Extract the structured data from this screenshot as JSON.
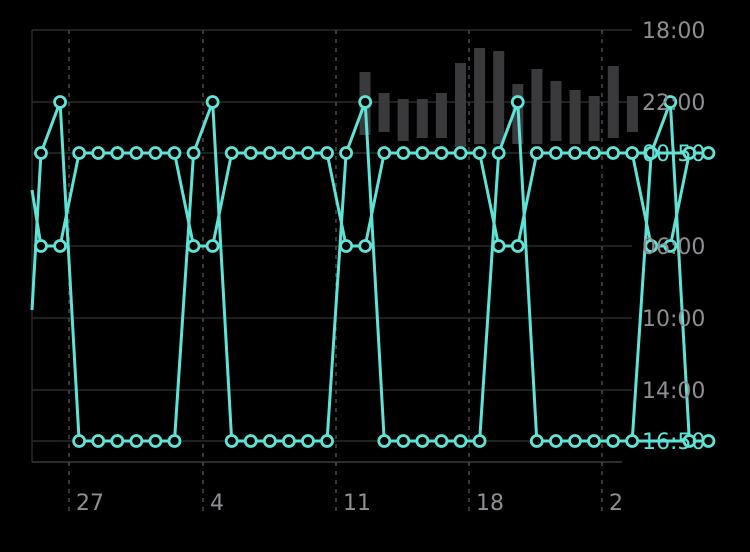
{
  "colors": {
    "background": "#000000",
    "grid": "#2a2a2a",
    "axis_label": "#8e8e93",
    "highlight_label": "#5fe3d6",
    "series": "#5fe3d6",
    "bars": "#3a3a3c"
  },
  "chart_data": {
    "type": "line",
    "title": "",
    "xlabel": "",
    "ylabel": "",
    "x_tick_labels": [
      "27",
      "4",
      "11",
      "18",
      "2"
    ],
    "y_tick_labels": [
      "18:00",
      "22:00",
      "00:50",
      "06:00",
      "10:00",
      "14:00",
      "16:50"
    ],
    "y_highlighted_labels": [
      "00:50",
      "16:50"
    ],
    "y_axis_reversed_time": true,
    "grid": true,
    "series": [
      {
        "values": [
          "00:50",
          "22:00",
          "16:50",
          "16:50",
          "16:50",
          "16:50",
          "16:50",
          "16:50",
          "00:50",
          "22:00",
          "16:50",
          "16:50",
          "16:50",
          "16:50",
          "16:50",
          "16:50",
          "00:50",
          "22:00",
          "16:50",
          "16:50",
          "16:50",
          "16:50",
          "16:50",
          "16:50",
          "00:50",
          "22:00",
          "16:50",
          "16:50",
          "16:50",
          "16:50",
          "16:50",
          "16:50",
          "00:50",
          "22:00",
          "16:50",
          "16:50"
        ]
      },
      {
        "values": [
          "06:00",
          "06:00",
          "00:50",
          "00:50",
          "00:50",
          "00:50",
          "00:50",
          "00:50",
          "06:00",
          "06:00",
          "00:50",
          "00:50",
          "00:50",
          "00:50",
          "00:50",
          "00:50",
          "06:00",
          "06:00",
          "00:50",
          "00:50",
          "00:50",
          "00:50",
          "00:50",
          "00:50",
          "06:00",
          "06:00",
          "00:50",
          "00:50",
          "00:50",
          "00:50",
          "00:50",
          "00:50",
          "06:00",
          "06:00",
          "00:50",
          "00:50"
        ]
      }
    ],
    "background_bars": {
      "ranges": [
        [
          "20:20",
          "23:50"
        ],
        [
          "21:30",
          "23:40"
        ],
        [
          "21:50",
          "00:10"
        ],
        [
          "21:50",
          "00:00"
        ],
        [
          "21:30",
          "00:00"
        ],
        [
          "19:50",
          "00:30"
        ],
        [
          "19:00",
          "00:20"
        ],
        [
          "19:10",
          "00:20"
        ],
        [
          "21:00",
          "00:20"
        ],
        [
          "20:10",
          "00:20"
        ],
        [
          "20:50",
          "00:10"
        ],
        [
          "21:20",
          "00:20"
        ],
        [
          "21:40",
          "00:10"
        ],
        [
          "20:00",
          "00:00"
        ],
        [
          "21:40",
          "23:40"
        ]
      ]
    }
  }
}
